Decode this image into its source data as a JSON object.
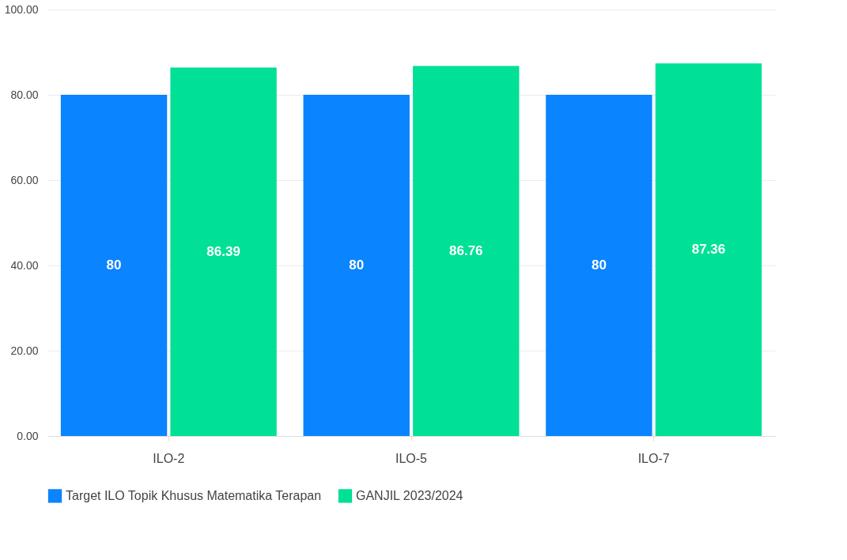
{
  "chart_data": {
    "type": "bar",
    "categories": [
      "ILO-2",
      "ILO-5",
      "ILO-7"
    ],
    "series": [
      {
        "name": "Target ILO Topik Khusus Matematika Terapan",
        "color": "#0a84ff",
        "values": [
          80,
          80,
          80
        ]
      },
      {
        "name": "GANJIL 2023/2024",
        "color": "#00e096",
        "values": [
          86.39,
          86.76,
          87.36
        ]
      }
    ],
    "ylim": [
      0,
      100
    ],
    "yticks": [
      {
        "value": 0,
        "label": "0.00"
      },
      {
        "value": 20,
        "label": "20.00"
      },
      {
        "value": 40,
        "label": "40.00"
      },
      {
        "value": 60,
        "label": "60.00"
      },
      {
        "value": 80,
        "label": "80.00"
      },
      {
        "value": 100,
        "label": "100.00"
      }
    ],
    "grid": "y",
    "legend": "bottom",
    "data_labels": true
  }
}
